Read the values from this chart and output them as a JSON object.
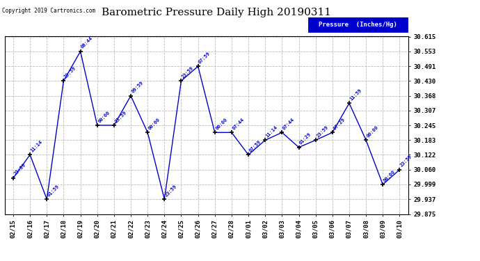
{
  "title": "Barometric Pressure Daily High 20190311",
  "copyright": "Copyright 2019 Cartronics.com",
  "legend_label": "Pressure  (Inches/Hg)",
  "dates": [
    "02/15",
    "02/16",
    "02/17",
    "02/18",
    "02/19",
    "02/20",
    "02/21",
    "02/22",
    "02/23",
    "02/24",
    "02/25",
    "02/26",
    "02/27",
    "02/28",
    "03/01",
    "03/02",
    "03/03",
    "03/04",
    "03/05",
    "03/06",
    "03/07",
    "03/08",
    "03/09",
    "03/10"
  ],
  "values": [
    30.025,
    30.122,
    29.937,
    30.43,
    30.553,
    30.245,
    30.245,
    30.368,
    30.215,
    29.937,
    30.43,
    30.491,
    30.215,
    30.215,
    30.122,
    30.183,
    30.215,
    30.153,
    30.183,
    30.215,
    30.337,
    30.183,
    29.998,
    30.06
  ],
  "time_labels": [
    "23:59",
    "11:14",
    "01:59",
    "23:59",
    "08:44",
    "00:00",
    "23:59",
    "09:59",
    "00:00",
    "23:59",
    "23:59",
    "07:59",
    "00:00",
    "07:44",
    "07:59",
    "11:14",
    "07:44",
    "01:29",
    "23:59",
    "07:29",
    "11:59",
    "00:00",
    "00:00",
    "23:59"
  ],
  "ylim": [
    29.875,
    30.615
  ],
  "yticks": [
    29.875,
    29.937,
    29.999,
    30.06,
    30.122,
    30.183,
    30.245,
    30.307,
    30.368,
    30.43,
    30.491,
    30.553,
    30.615
  ],
  "line_color": "#0000cc",
  "marker_color": "#000000",
  "grid_color": "#bbbbbb",
  "bg_color": "#ffffff",
  "title_color": "#000000",
  "label_color": "#0000cc",
  "legend_bg": "#0000cc",
  "legend_text_color": "#ffffff"
}
